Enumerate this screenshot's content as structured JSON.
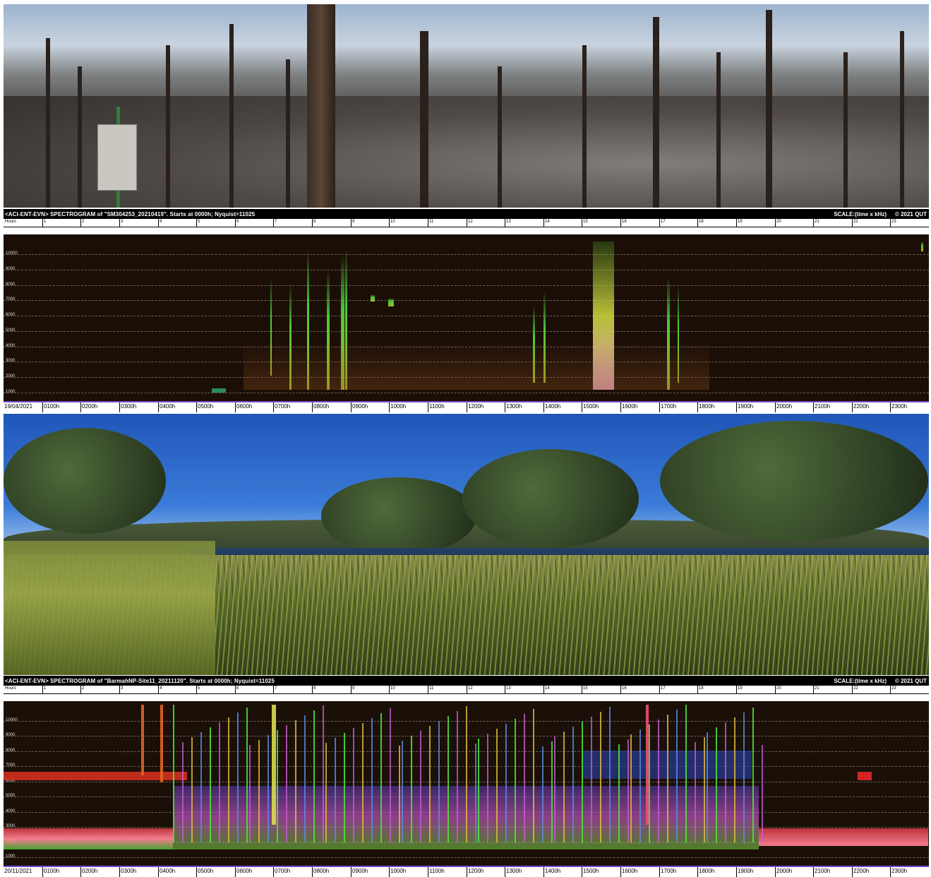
{
  "spectrograms": [
    {
      "title": "<ACI-ENT-EVN> SPECTROGRAM  of \"SM304253_20210419\".   Starts at 0000h; Nyquist=11025",
      "scale": "SCALE:(time x kHz)",
      "copyright": "© 2021 QUT",
      "date": "19/04/2021"
    },
    {
      "title": "<ACI-ENT-EVN> SPECTROGRAM  of \"BarmahNP-Site11_20211120\".   Starts at 0000h; Nyquist=11025",
      "scale": "SCALE:(time x kHz)",
      "copyright": "© 2021 QUT",
      "date": "20/11/2021"
    }
  ],
  "hours_label": "Hours",
  "hour_numbers": [
    "1",
    "2",
    "3",
    "4",
    "5",
    "6",
    "7",
    "8",
    "9",
    "10",
    "11",
    "12",
    "13",
    "14",
    "15",
    "16",
    "17",
    "18",
    "19",
    "20",
    "21",
    "22",
    "23"
  ],
  "freq_labels": [
    "10000",
    "9000",
    "8000",
    "7000",
    "6000",
    "5000",
    "4000",
    "3000",
    "2000",
    "1000"
  ],
  "time_labels": [
    "0100h",
    "0200h",
    "0300h",
    "0400h",
    "0500h",
    "0600h",
    "0700h",
    "0800h",
    "0900h",
    "1000h",
    "1100h",
    "1200h",
    "1300h",
    "1400h",
    "1500h",
    "1600h",
    "1700h",
    "1800h",
    "1900h",
    "2000h",
    "2100h",
    "2200h",
    "2300h"
  ]
}
